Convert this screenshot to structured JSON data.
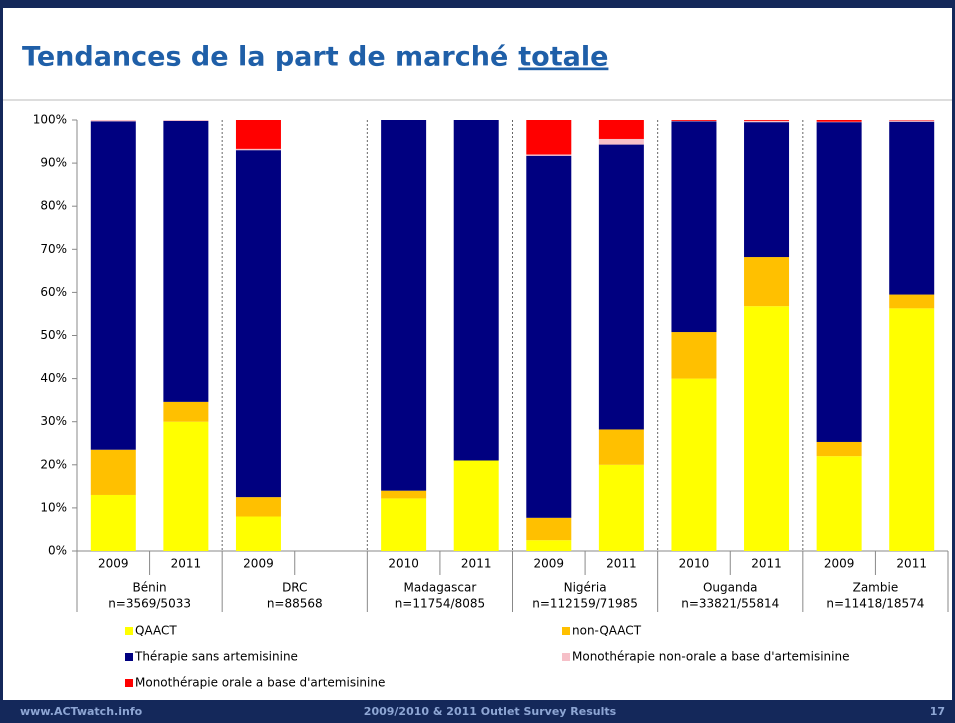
{
  "title_parts": [
    "Tendances de la part de marché",
    "totale"
  ],
  "chart_data": {
    "type": "stacked-bar",
    "categories": [
      "2009",
      "2011",
      "2009",
      null,
      "2010",
      "2011",
      "2009",
      "2011",
      "2010",
      "2011",
      "2009",
      "2011"
    ],
    "groups": [
      {
        "name": "Bénin",
        "n": "n=3569/5033"
      },
      {
        "name": "DRC",
        "n": "n=88568"
      },
      {
        "name": "Madagascar",
        "n": "n=11754/8085"
      },
      {
        "name": "Nigéria",
        "n": "n=112159/71985"
      },
      {
        "name": "Ouganda",
        "n": "n=33821/55814"
      },
      {
        "name": "Zambie",
        "n": "n=11418/18574"
      }
    ],
    "series": [
      {
        "name": "QAACT",
        "color": "#ffff00",
        "values": [
          13,
          30,
          8,
          null,
          12.2,
          21,
          2.5,
          20,
          40,
          56.8,
          22,
          56.3
        ]
      },
      {
        "name": "non-QAACT",
        "color": "#ffc000",
        "values": [
          10.5,
          4.6,
          4.5,
          null,
          1.8,
          0,
          5.2,
          8.2,
          10.8,
          11.4,
          3.3,
          3.2
        ]
      },
      {
        "name": "Thérapie sans artemisinine",
        "color": "#000080",
        "values": [
          76.2,
          65.2,
          80.5,
          null,
          86,
          79,
          84,
          66.1,
          48.9,
          31.3,
          74.2,
          40.1
        ]
      },
      {
        "name": "Monothérapie non-orale a base d'artemisinine",
        "color": "#f6c0c8",
        "values": [
          0.3,
          0.2,
          0.3,
          null,
          0,
          0,
          0.3,
          1.3,
          0.1,
          0.3,
          0.1,
          0.3
        ]
      },
      {
        "name": "Monothérapie orale a base d'artemisinine",
        "color": "#ff0000",
        "values": [
          0,
          0,
          6.7,
          null,
          0,
          0,
          8,
          4.4,
          0.2,
          0.2,
          0.4,
          0.1
        ]
      }
    ],
    "ylim": [
      0,
      100
    ],
    "yticks": [
      {
        "value": 0,
        "label": "0%"
      },
      {
        "value": 10,
        "label": "10%"
      },
      {
        "value": 20,
        "label": "20%"
      },
      {
        "value": 30,
        "label": "30%"
      },
      {
        "value": 40,
        "label": "40%"
      },
      {
        "value": 50,
        "label": "50%"
      },
      {
        "value": 60,
        "label": "60%"
      },
      {
        "value": 70,
        "label": "70%"
      },
      {
        "value": 80,
        "label": "80%"
      },
      {
        "value": 90,
        "label": "90%"
      },
      {
        "value": 100,
        "label": "100%"
      }
    ]
  },
  "footer": {
    "left": "www.ACTwatch.info",
    "center": "2009/2010 & 2011 Outlet Survey Results",
    "right": "17"
  }
}
